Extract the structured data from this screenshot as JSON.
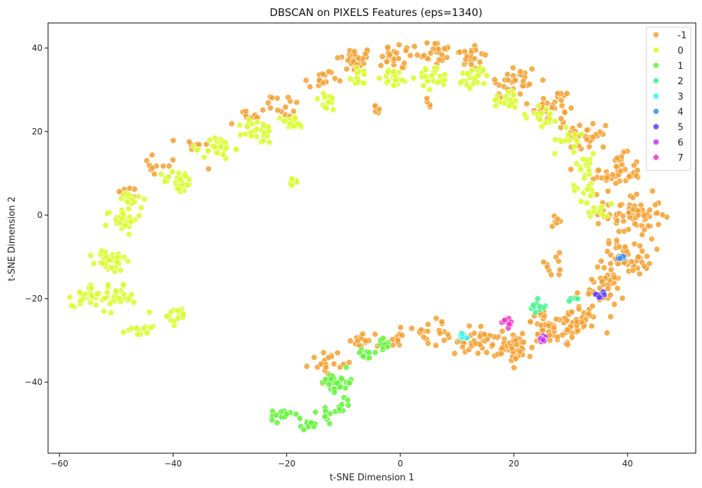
{
  "chart_data": {
    "type": "scatter",
    "title": "DBSCAN on PIXELS Features (eps=1340)",
    "xlabel": "t-SNE Dimension 1",
    "ylabel": "t-SNE Dimension 2",
    "xlim": [
      -62,
      52
    ],
    "ylim": [
      -57,
      46
    ],
    "xticks": [
      -60,
      -40,
      -20,
      0,
      20,
      40
    ],
    "yticks": [
      -40,
      -20,
      0,
      20,
      40
    ],
    "xtick_labels": [
      "−60",
      "−40",
      "−20",
      "0",
      "20",
      "40"
    ],
    "ytick_labels": [
      "−40",
      "−20",
      "0",
      "20",
      "40"
    ],
    "grid": false,
    "legend_position": "top-right",
    "series": [
      {
        "name": "-1",
        "color": "#f5a030",
        "clusters": [
          {
            "x": -8,
            "y": 37,
            "n": 35,
            "spread": 3.0
          },
          {
            "x": 0,
            "y": 38,
            "n": 25,
            "spread": 3.0
          },
          {
            "x": 6,
            "y": 39,
            "n": 20,
            "spread": 3.0
          },
          {
            "x": 12,
            "y": 38,
            "n": 25,
            "spread": 3.0
          },
          {
            "x": 20,
            "y": 32,
            "n": 30,
            "spread": 4.0
          },
          {
            "x": 27,
            "y": 26,
            "n": 30,
            "spread": 4.0
          },
          {
            "x": 33,
            "y": 19,
            "n": 30,
            "spread": 3.5
          },
          {
            "x": 38,
            "y": 10,
            "n": 45,
            "spread": 4.0
          },
          {
            "x": 41,
            "y": 0,
            "n": 65,
            "spread": 4.5
          },
          {
            "x": 40,
            "y": -10,
            "n": 55,
            "spread": 4.0
          },
          {
            "x": 35,
            "y": -18,
            "n": 35,
            "spread": 4.0
          },
          {
            "x": 31,
            "y": -26,
            "n": 45,
            "spread": 3.5
          },
          {
            "x": 26,
            "y": -27,
            "n": 45,
            "spread": 3.5
          },
          {
            "x": 20,
            "y": -32,
            "n": 50,
            "spread": 3.0
          },
          {
            "x": 13,
            "y": -30,
            "n": 40,
            "spread": 3.0
          },
          {
            "x": 6,
            "y": -28,
            "n": 20,
            "spread": 3.0
          },
          {
            "x": 0,
            "y": -29,
            "n": 12,
            "spread": 2.5
          },
          {
            "x": -6,
            "y": -30,
            "n": 15,
            "spread": 2.5
          },
          {
            "x": -13,
            "y": -35,
            "n": 20,
            "spread": 2.5
          },
          {
            "x": -20,
            "y": 26,
            "n": 15,
            "spread": 2.5
          },
          {
            "x": -14,
            "y": 32,
            "n": 15,
            "spread": 2.5
          },
          {
            "x": -27,
            "y": 23,
            "n": 12,
            "spread": 2.5
          },
          {
            "x": -36,
            "y": 16,
            "n": 10,
            "spread": 3.0
          },
          {
            "x": -43,
            "y": 12,
            "n": 10,
            "spread": 3.0
          },
          {
            "x": -48,
            "y": 5,
            "n": 10,
            "spread": 2.5
          },
          {
            "x": 27,
            "y": -2,
            "n": 6,
            "spread": 2.0
          },
          {
            "x": 27,
            "y": -12,
            "n": 10,
            "spread": 2.5
          },
          {
            "x": 5,
            "y": 27,
            "n": 4,
            "spread": 1.2
          },
          {
            "x": -4,
            "y": 25,
            "n": 5,
            "spread": 1.2
          }
        ]
      },
      {
        "name": "0",
        "color": "#d8fb2a",
        "clusters": [
          {
            "x": -55,
            "y": -19,
            "n": 30,
            "spread": 2.5
          },
          {
            "x": -50,
            "y": -20,
            "n": 30,
            "spread": 2.5
          },
          {
            "x": -51,
            "y": -11,
            "n": 40,
            "spread": 2.5
          },
          {
            "x": -49,
            "y": -1,
            "n": 35,
            "spread": 2.5
          },
          {
            "x": -47,
            "y": 4,
            "n": 15,
            "spread": 2.0
          },
          {
            "x": -46,
            "y": -27,
            "n": 15,
            "spread": 2.0
          },
          {
            "x": -39,
            "y": -24,
            "n": 15,
            "spread": 2.0
          },
          {
            "x": -39,
            "y": 8,
            "n": 35,
            "spread": 2.5
          },
          {
            "x": -32,
            "y": 16,
            "n": 30,
            "spread": 2.5
          },
          {
            "x": -25,
            "y": 20,
            "n": 30,
            "spread": 2.5
          },
          {
            "x": -19,
            "y": 22,
            "n": 20,
            "spread": 2.0
          },
          {
            "x": -13,
            "y": 27,
            "n": 15,
            "spread": 2.0
          },
          {
            "x": -7,
            "y": 33,
            "n": 15,
            "spread": 2.0
          },
          {
            "x": -1,
            "y": 33,
            "n": 20,
            "spread": 2.0
          },
          {
            "x": 6,
            "y": 33,
            "n": 25,
            "spread": 2.5
          },
          {
            "x": 13,
            "y": 33,
            "n": 25,
            "spread": 2.5
          },
          {
            "x": 19,
            "y": 28,
            "n": 20,
            "spread": 2.5
          },
          {
            "x": 25,
            "y": 24,
            "n": 15,
            "spread": 2.5
          },
          {
            "x": 30,
            "y": 18,
            "n": 15,
            "spread": 2.5
          },
          {
            "x": 32,
            "y": 12,
            "n": 15,
            "spread": 2.5
          },
          {
            "x": 33,
            "y": 6,
            "n": 15,
            "spread": 2.5
          },
          {
            "x": 35,
            "y": 1,
            "n": 12,
            "spread": 2.0
          },
          {
            "x": -19,
            "y": 8,
            "n": 6,
            "spread": 0.8
          }
        ]
      },
      {
        "name": "1",
        "color": "#63f53a",
        "clusters": [
          {
            "x": -21,
            "y": -48,
            "n": 15,
            "spread": 1.5
          },
          {
            "x": -16,
            "y": -50,
            "n": 15,
            "spread": 1.5
          },
          {
            "x": -13,
            "y": -48,
            "n": 10,
            "spread": 1.5
          },
          {
            "x": -11,
            "y": -40,
            "n": 30,
            "spread": 2.5
          },
          {
            "x": -10,
            "y": -45,
            "n": 8,
            "spread": 1.5
          },
          {
            "x": -6,
            "y": -34,
            "n": 10,
            "spread": 1.5
          },
          {
            "x": -3,
            "y": -31,
            "n": 10,
            "spread": 1.5
          }
        ]
      },
      {
        "name": "2",
        "color": "#3df58c",
        "clusters": [
          {
            "x": 24,
            "y": -22,
            "n": 10,
            "spread": 1.5
          },
          {
            "x": 30,
            "y": -20,
            "n": 4,
            "spread": 1.0
          }
        ]
      },
      {
        "name": "3",
        "color": "#36f5ee",
        "clusters": [
          {
            "x": 11,
            "y": -29,
            "n": 8,
            "spread": 0.6
          }
        ]
      },
      {
        "name": "4",
        "color": "#3d8cf0",
        "clusters": [
          {
            "x": 39,
            "y": -10,
            "n": 7,
            "spread": 0.6
          }
        ]
      },
      {
        "name": "5",
        "color": "#5a3df0",
        "clusters": [
          {
            "x": 35,
            "y": -19,
            "n": 10,
            "spread": 0.8
          }
        ]
      },
      {
        "name": "6",
        "color": "#c63af0",
        "clusters": [
          {
            "x": 25,
            "y": -30,
            "n": 10,
            "spread": 0.9
          }
        ]
      },
      {
        "name": "7",
        "color": "#f03ac6",
        "clusters": [
          {
            "x": 19,
            "y": -26,
            "n": 8,
            "spread": 0.9
          }
        ]
      }
    ]
  }
}
